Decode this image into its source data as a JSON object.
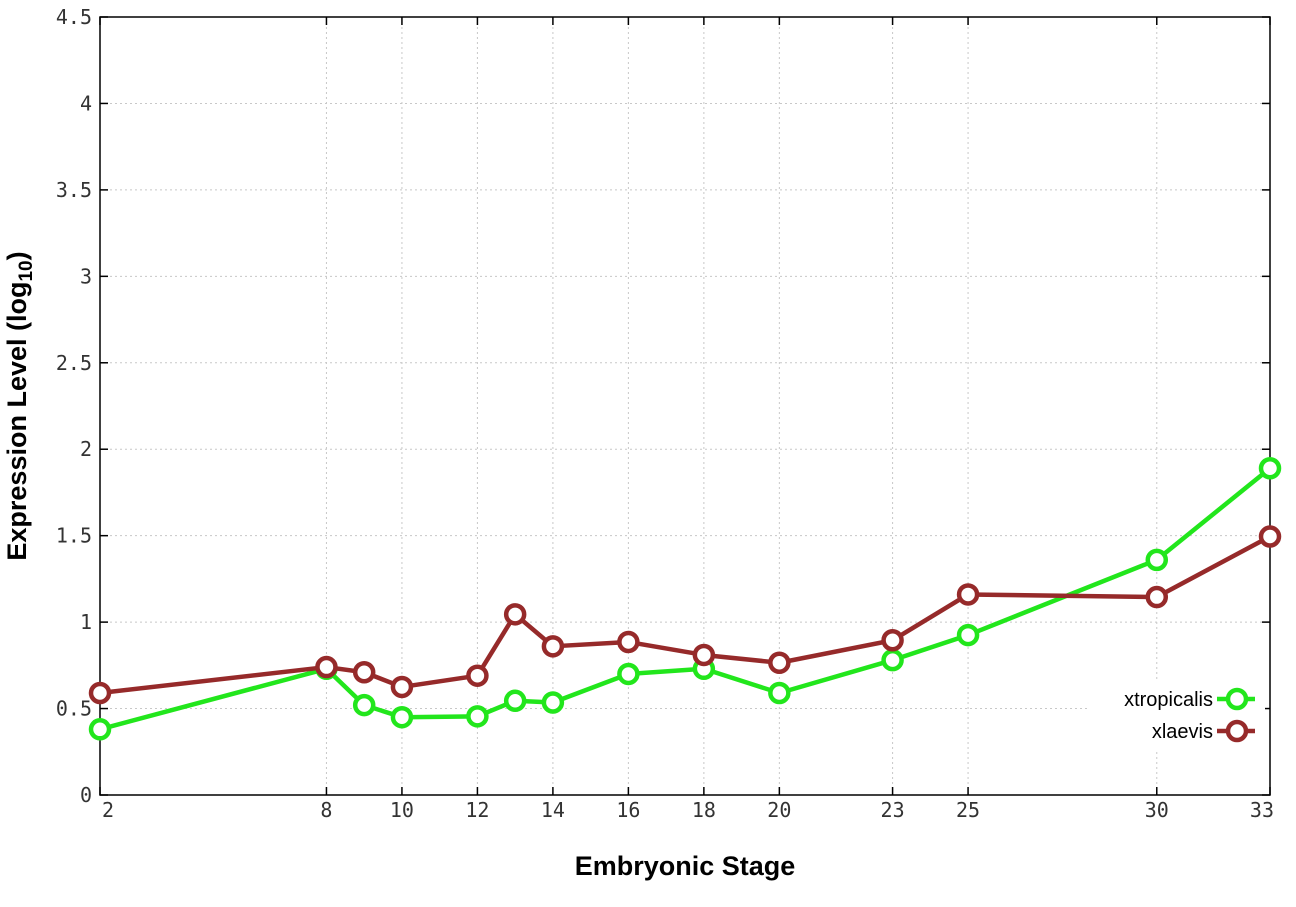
{
  "chart_data": {
    "type": "line",
    "xlabel": "Embryonic Stage",
    "ylabel_main": "Expression Level (log",
    "ylabel_sub": "10",
    "ylabel_close": ")",
    "xlim": [
      2,
      33
    ],
    "ylim": [
      0,
      4.5
    ],
    "x_ticks": [
      2,
      8,
      10,
      12,
      14,
      16,
      18,
      20,
      23,
      25,
      30,
      33
    ],
    "y_ticks": [
      0,
      0.5,
      1,
      1.5,
      2,
      2.5,
      3,
      3.5,
      4,
      4.5
    ],
    "y_tick_labels": [
      "0",
      "0.5",
      "1",
      "1.5",
      "2",
      "2.5",
      "3",
      "3.5",
      "4",
      "4.5"
    ],
    "grid": true,
    "legend_position": "bottom-right",
    "x": [
      2,
      8,
      9,
      10,
      12,
      13,
      14,
      16,
      18,
      20,
      23,
      25,
      30,
      33
    ],
    "series": [
      {
        "name": "xtropicalis",
        "color": "#22e61c",
        "values": [
          0.38,
          0.73,
          0.52,
          0.45,
          0.455,
          0.545,
          0.535,
          0.7,
          0.73,
          0.59,
          0.78,
          0.925,
          1.36,
          1.89
        ]
      },
      {
        "name": "xlaevis",
        "color": "#962a2a",
        "values": [
          0.59,
          0.74,
          0.71,
          0.625,
          0.69,
          1.045,
          0.86,
          0.885,
          0.81,
          0.765,
          0.895,
          1.16,
          1.145,
          1.495
        ]
      }
    ]
  }
}
